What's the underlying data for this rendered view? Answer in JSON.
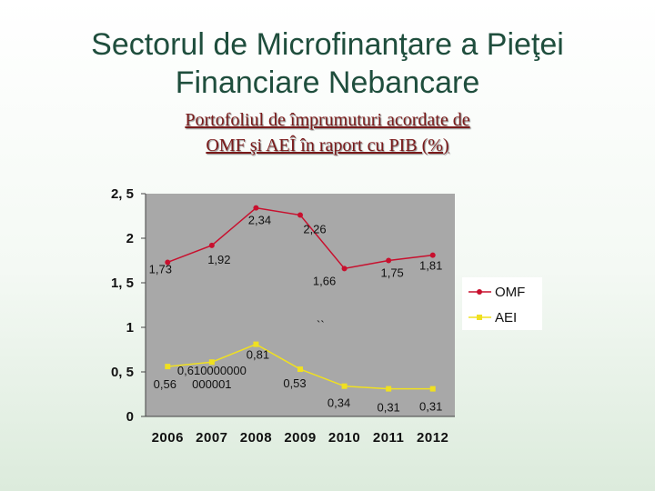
{
  "slide": {
    "title_line1": "Sectorul de Microfinanţare a Pieţei",
    "title_line2": "Financiare Nebancare",
    "subtitle_line1": "Portofoliul de împrumuturi acordate de",
    "subtitle_line2": "OMF şi AEÎ în raport cu PIB (%)"
  },
  "colors": {
    "omf": "#c8102e",
    "aei": "#f0e020",
    "plot_bg": "#a8a8a8",
    "title": "#1f4e3d",
    "subtitle": "#7a1a1a"
  },
  "chart_data": {
    "type": "line",
    "categories": [
      "2006",
      "2007",
      "2008",
      "2009",
      "2010",
      "2011",
      "2012"
    ],
    "y_ticks": [
      "0",
      "0, 5",
      "1",
      "1, 5",
      "2",
      "2, 5"
    ],
    "ylim": [
      0,
      2.5
    ],
    "grid": false,
    "legend_position": "right",
    "stray_mark": "``",
    "series": [
      {
        "name": "OMF",
        "values": [
          1.73,
          1.92,
          2.34,
          2.26,
          1.66,
          1.75,
          1.81
        ],
        "labels": [
          "1,73",
          "1,92",
          "2,34",
          "2,26",
          "1,66",
          "1,75",
          "1,81"
        ]
      },
      {
        "name": "AEI",
        "values": [
          0.56,
          0.61,
          0.81,
          0.53,
          0.34,
          0.31,
          0.31
        ],
        "labels": [
          "0,56",
          "0,610000000 000001",
          "0,81",
          "0,53",
          "0,34",
          "0,31",
          "0,31"
        ]
      }
    ]
  }
}
